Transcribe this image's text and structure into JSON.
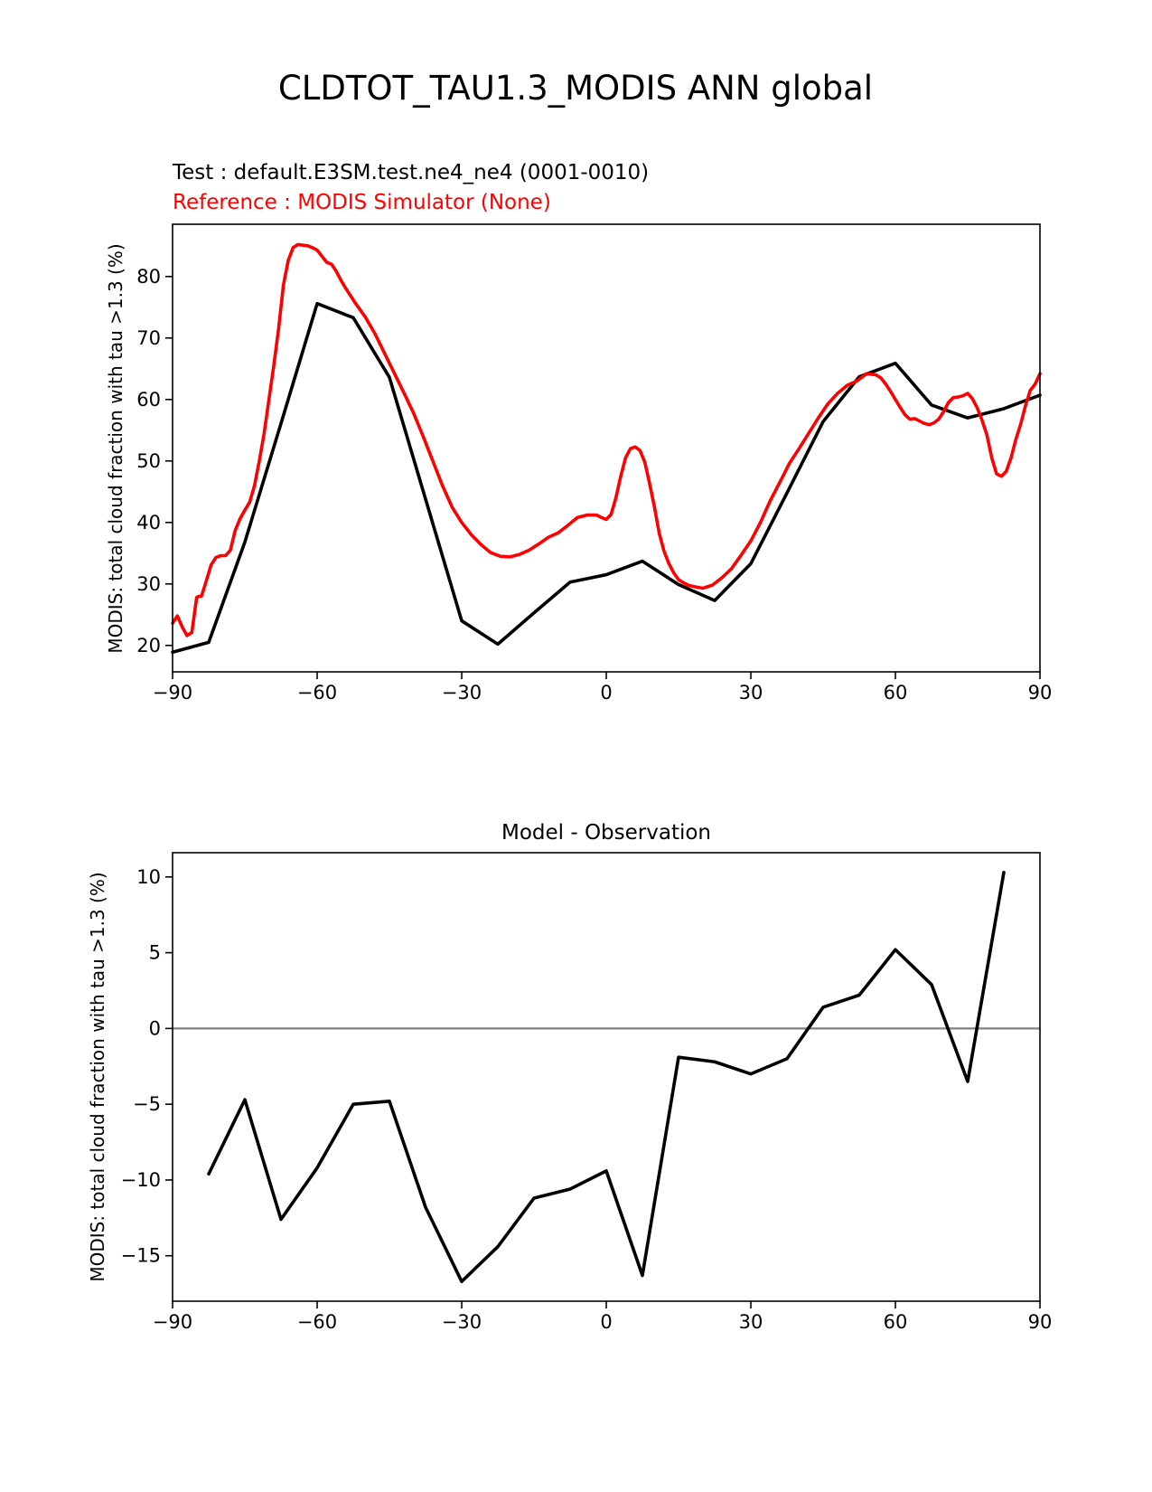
{
  "figure": {
    "title": "CLDTOT_TAU1.3_MODIS ANN global"
  },
  "colors": {
    "test": "#000000",
    "reference": "#ff0000",
    "zero_line": "#808080"
  },
  "chart_data": [
    {
      "type": "line",
      "test_label": "Test : default.E3SM.test.ne4_ne4 (0001-0010)",
      "reference_label": "Reference : MODIS Simulator (None)",
      "xlabel": "",
      "ylabel": "MODIS: total cloud fraction with tau >1.3 (%)",
      "xlim": [
        -90,
        90
      ],
      "ylim": [
        15.7,
        88.5
      ],
      "xticks": [
        -90,
        -60,
        -30,
        0,
        30,
        60,
        90
      ],
      "xtick_labels": [
        "−90",
        "−60",
        "−30",
        "0",
        "30",
        "60",
        "90"
      ],
      "yticks": [
        20,
        30,
        40,
        50,
        60,
        70,
        80
      ],
      "yticks_labels": [
        "20",
        "30",
        "40",
        "50",
        "60",
        "70",
        "80"
      ],
      "grid": false,
      "series": [
        {
          "role": "test",
          "x": [
            -90,
            -82.5,
            -75,
            -67.5,
            -60,
            -52.5,
            -45,
            -37.5,
            -30,
            -22.5,
            -15,
            -7.5,
            0,
            7.5,
            15,
            22.5,
            30,
            37.5,
            45,
            52.5,
            60,
            67.5,
            75,
            82.5,
            90
          ],
          "y": [
            18.9,
            20.5,
            36.8,
            56.1,
            75.6,
            73.3,
            63.6,
            43.8,
            24.0,
            20.2,
            25.3,
            30.3,
            31.5,
            33.7,
            29.9,
            27.3,
            33.3,
            44.8,
            56.4,
            63.7,
            65.9,
            59.1,
            57.0,
            58.5,
            60.7
          ]
        },
        {
          "role": "reference",
          "x": [
            -90,
            -89,
            -88,
            -87,
            -86,
            -85,
            -84.5,
            -84,
            -83,
            -82,
            -81,
            -80,
            -79,
            -78,
            -77,
            -76,
            -75,
            -74,
            -73,
            -72,
            -71,
            -70,
            -69,
            -68,
            -67,
            -66,
            -65,
            -64,
            -63,
            -62,
            -61,
            -60,
            -59,
            -58,
            -57,
            -56,
            -55,
            -54,
            -53,
            -52,
            -51,
            -50,
            -48,
            -46,
            -44,
            -42,
            -40,
            -38,
            -36,
            -34,
            -32,
            -30,
            -28,
            -26,
            -24,
            -22,
            -20,
            -18,
            -16,
            -14,
            -12,
            -10,
            -8,
            -6,
            -4,
            -2,
            -1,
            0,
            1,
            2,
            3,
            4,
            5,
            6,
            7,
            8,
            9,
            10,
            11,
            12,
            13,
            14,
            15,
            16,
            17,
            18,
            20,
            22,
            24,
            26,
            28,
            30,
            32,
            34,
            36,
            38,
            40,
            42,
            44,
            46,
            48,
            50,
            52,
            54,
            56,
            57,
            58,
            59,
            60,
            61,
            62,
            63,
            64,
            65,
            66,
            67,
            68,
            69,
            70,
            71,
            72,
            73,
            74,
            75,
            76,
            77,
            78,
            79,
            80,
            81,
            82,
            83,
            84,
            85,
            86,
            87,
            88,
            89,
            90
          ],
          "y": [
            23.6,
            24.8,
            23.0,
            21.6,
            22.1,
            27.8,
            28.0,
            28.0,
            30.5,
            33.1,
            34.3,
            34.6,
            34.6,
            35.5,
            38.7,
            40.6,
            42.0,
            43.3,
            46.0,
            50.0,
            54.5,
            60.0,
            65.5,
            71.5,
            78.6,
            82.6,
            84.7,
            85.2,
            85.1,
            85.0,
            84.7,
            84.3,
            83.3,
            82.3,
            82.0,
            80.8,
            79.3,
            78.0,
            76.8,
            75.6,
            74.5,
            73.4,
            70.7,
            67.5,
            64.3,
            61.1,
            57.8,
            54.0,
            50.0,
            46.0,
            42.5,
            40.0,
            38.0,
            36.4,
            35.1,
            34.5,
            34.4,
            34.8,
            35.5,
            36.5,
            37.6,
            38.3,
            39.5,
            40.8,
            41.2,
            41.2,
            40.8,
            40.5,
            41.3,
            44.0,
            47.5,
            50.5,
            52.0,
            52.3,
            51.7,
            49.8,
            46.3,
            42.5,
            38.2,
            35.3,
            33.3,
            31.8,
            30.7,
            30.2,
            29.8,
            29.6,
            29.3,
            29.8,
            31.0,
            32.5,
            34.7,
            37.0,
            40.0,
            43.5,
            46.5,
            49.6,
            52.0,
            54.5,
            57.0,
            59.3,
            61.0,
            62.3,
            63.0,
            64.2,
            64.0,
            63.5,
            62.5,
            61.3,
            60.0,
            58.7,
            57.5,
            56.8,
            56.9,
            56.5,
            56.1,
            55.9,
            56.2,
            56.8,
            58.0,
            59.5,
            60.3,
            60.4,
            60.6,
            61.0,
            60.1,
            58.6,
            56.6,
            54.2,
            50.5,
            47.9,
            47.5,
            48.3,
            50.5,
            53.5,
            56.0,
            59.0,
            61.5,
            62.5,
            64.2
          ]
        }
      ]
    },
    {
      "type": "line",
      "title": "Model - Observation",
      "xlabel": "",
      "ylabel": "MODIS: total cloud fraction with tau >1.3 (%)",
      "xlim": [
        -90,
        90
      ],
      "ylim": [
        -18,
        11.6
      ],
      "xticks": [
        -90,
        -60,
        -30,
        0,
        30,
        60,
        90
      ],
      "xtick_labels": [
        "−90",
        "−60",
        "−30",
        "0",
        "30",
        "60",
        "90"
      ],
      "yticks": [
        10,
        5,
        0,
        -5,
        -10,
        -15
      ],
      "yticks_labels": [
        "10",
        "5",
        "0",
        "−5",
        "−10",
        "−15"
      ],
      "grid": false,
      "zero_line": 0,
      "series": [
        {
          "role": "difference",
          "x": [
            -82.5,
            -75,
            -67.5,
            -60,
            -52.5,
            -45,
            -37.5,
            -30,
            -22.5,
            -15,
            -7.5,
            0,
            7.5,
            15,
            22.5,
            30,
            37.5,
            45,
            52.5,
            60,
            67.5,
            75,
            82.5
          ],
          "y": [
            -9.6,
            -4.7,
            -12.6,
            -9.2,
            -5.0,
            -4.8,
            -11.8,
            -16.7,
            -14.4,
            -11.2,
            -10.6,
            -9.4,
            -16.3,
            -1.9,
            -2.2,
            -3.0,
            -2.0,
            1.4,
            2.2,
            5.2,
            2.9,
            -3.5,
            10.3
          ]
        }
      ]
    }
  ]
}
